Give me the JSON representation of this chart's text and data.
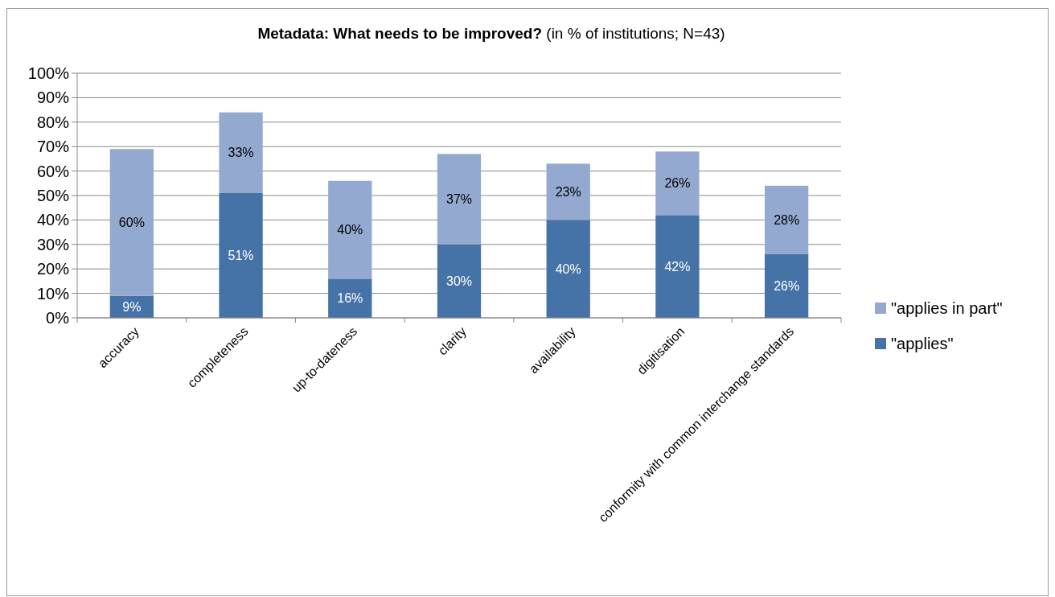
{
  "chart_data": {
    "type": "bar",
    "stacked": true,
    "title": "Metadata: What needs to be improved?",
    "subtitle": "(in % of institutions; N=43)",
    "categories": [
      "accuracy",
      "completeness",
      "up-to-dateness",
      "clarity",
      "availability",
      "digitisation",
      "conformity with common interchange standards"
    ],
    "series": [
      {
        "name": "\"applies\"",
        "color": "#4572a7",
        "values": [
          9,
          51,
          16,
          30,
          40,
          42,
          26
        ],
        "value_labels": [
          "9%",
          "51%",
          "16%",
          "30%",
          "40%",
          "42%",
          "26%"
        ]
      },
      {
        "name": "\"applies in part\"",
        "color": "#93a9cf",
        "values": [
          60,
          33,
          40,
          37,
          23,
          26,
          28
        ],
        "value_labels": [
          "60%",
          "33%",
          "40%",
          "37%",
          "23%",
          "26%",
          "28%"
        ]
      }
    ],
    "ylim": [
      0,
      100
    ],
    "yticks": [
      {
        "value": 0,
        "label": "0%"
      },
      {
        "value": 10,
        "label": "10%"
      },
      {
        "value": 20,
        "label": "20%"
      },
      {
        "value": 30,
        "label": "30%"
      },
      {
        "value": 40,
        "label": "40%"
      },
      {
        "value": 50,
        "label": "50%"
      },
      {
        "value": 60,
        "label": "60%"
      },
      {
        "value": 70,
        "label": "70%"
      },
      {
        "value": 80,
        "label": "80%"
      },
      {
        "value": 90,
        "label": "90%"
      },
      {
        "value": 100,
        "label": "100%"
      }
    ],
    "grid": "y",
    "legend": "right"
  }
}
